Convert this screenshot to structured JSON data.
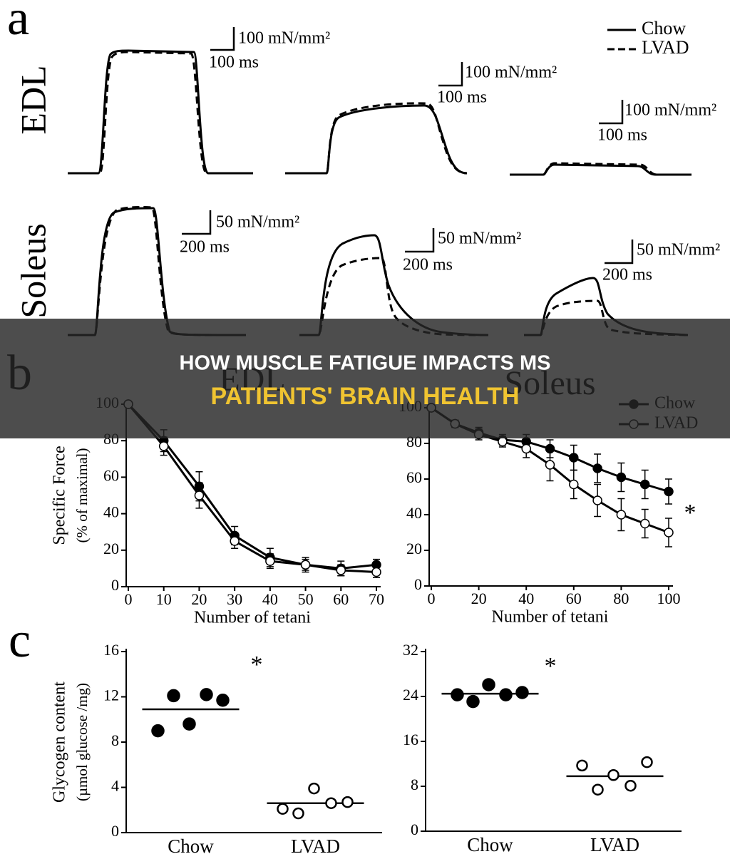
{
  "panel_a": {
    "label": "a",
    "rows": [
      "EDL",
      "Soleus"
    ],
    "legend": [
      "Chow",
      "LVAD"
    ],
    "scale_bars": [
      {
        "force": "100 mN/mm²",
        "time": "100 ms"
      },
      {
        "force": "100 mN/mm²",
        "time": "100 ms"
      },
      {
        "force": "100 mN/mm²",
        "time": "100 ms"
      },
      {
        "force": "50 mN/mm²",
        "time": "200 ms"
      },
      {
        "force": "50 mN/mm²",
        "time": "200 ms"
      },
      {
        "force": "50 mN/mm²",
        "time": "200 ms"
      }
    ]
  },
  "panel_b": {
    "label": "b"
  },
  "panel_c": {
    "label": "c"
  },
  "banner": {
    "title": [
      "HOW MUSCLE FATIGUE IMPACTS MS",
      "PATIENTS' BRAIN HEALTH"
    ]
  },
  "chart_data": [
    {
      "type": "line",
      "title": "EDL",
      "xlabel": "Number of tetani",
      "ylabel": [
        "Specific Force",
        "(% of maximal)"
      ],
      "x": [
        0,
        10,
        20,
        30,
        40,
        50,
        60,
        70
      ],
      "xlim": [
        0,
        70
      ],
      "xticks": [
        0,
        10,
        20,
        30,
        40,
        50,
        60,
        70
      ],
      "ylim": [
        0,
        100
      ],
      "yticks": [
        0,
        20,
        40,
        60,
        80,
        100
      ],
      "series": [
        {
          "name": "Chow",
          "color": "#000000",
          "marker": "filled",
          "values": [
            100,
            80,
            55,
            28,
            16,
            12,
            10,
            12
          ],
          "errors": [
            0,
            6,
            8,
            5,
            5,
            4,
            4,
            3
          ]
        },
        {
          "name": "LVAD",
          "color": "#000000",
          "marker": "open",
          "values": [
            100,
            77,
            50,
            25,
            14,
            12,
            9,
            8
          ],
          "errors": [
            0,
            5,
            7,
            4,
            4,
            3,
            3,
            3
          ]
        }
      ]
    },
    {
      "type": "line",
      "title": "Soleus",
      "xlabel": "Number of tetani",
      "legend": "upper right",
      "annotation": "*",
      "x": [
        0,
        10,
        20,
        30,
        40,
        50,
        60,
        70,
        80,
        90,
        100
      ],
      "xlim": [
        0,
        100
      ],
      "xticks": [
        0,
        20,
        40,
        60,
        80,
        100
      ],
      "ylim": [
        0,
        100
      ],
      "yticks": [
        0,
        20,
        40,
        60,
        80,
        100
      ],
      "series": [
        {
          "name": "Chow",
          "color": "#000000",
          "marker": "filled",
          "values": [
            100,
            91,
            86,
            82,
            81,
            77,
            72,
            66,
            61,
            57,
            53
          ],
          "errors": [
            0,
            2,
            3,
            3,
            4,
            5,
            7,
            8,
            8,
            8,
            7
          ]
        },
        {
          "name": "LVAD",
          "color": "#000000",
          "marker": "open",
          "values": [
            100,
            91,
            85,
            81,
            77,
            68,
            57,
            48,
            40,
            35,
            30
          ],
          "errors": [
            0,
            2,
            3,
            3,
            5,
            9,
            8,
            9,
            9,
            8,
            8
          ]
        }
      ]
    },
    {
      "type": "dotplot",
      "ylabel": [
        "Glycogen content",
        "(µmol glucose /mg)"
      ],
      "annotation": "*",
      "categories": [
        "Chow",
        "LVAD"
      ],
      "ylim": [
        0,
        16
      ],
      "yticks": [
        0,
        4,
        8,
        12,
        16
      ],
      "groups": [
        [
          9,
          12.1,
          9.6,
          12.2,
          11.7
        ],
        [
          2.1,
          1.7,
          3.9,
          2.6,
          2.7
        ]
      ],
      "markers": [
        "filled",
        "open"
      ],
      "means": [
        10.9,
        2.6
      ]
    },
    {
      "type": "dotplot",
      "annotation": "*",
      "categories": [
        "Chow",
        "LVAD"
      ],
      "ylim": [
        0,
        32
      ],
      "yticks": [
        0,
        8,
        16,
        24,
        32
      ],
      "groups": [
        [
          24.3,
          23.1,
          26.1,
          24.3,
          24.7
        ],
        [
          11.7,
          7.4,
          10.0,
          8.1,
          12.3
        ]
      ],
      "markers": [
        "filled",
        "open"
      ],
      "means": [
        24.5,
        9.8
      ]
    }
  ]
}
